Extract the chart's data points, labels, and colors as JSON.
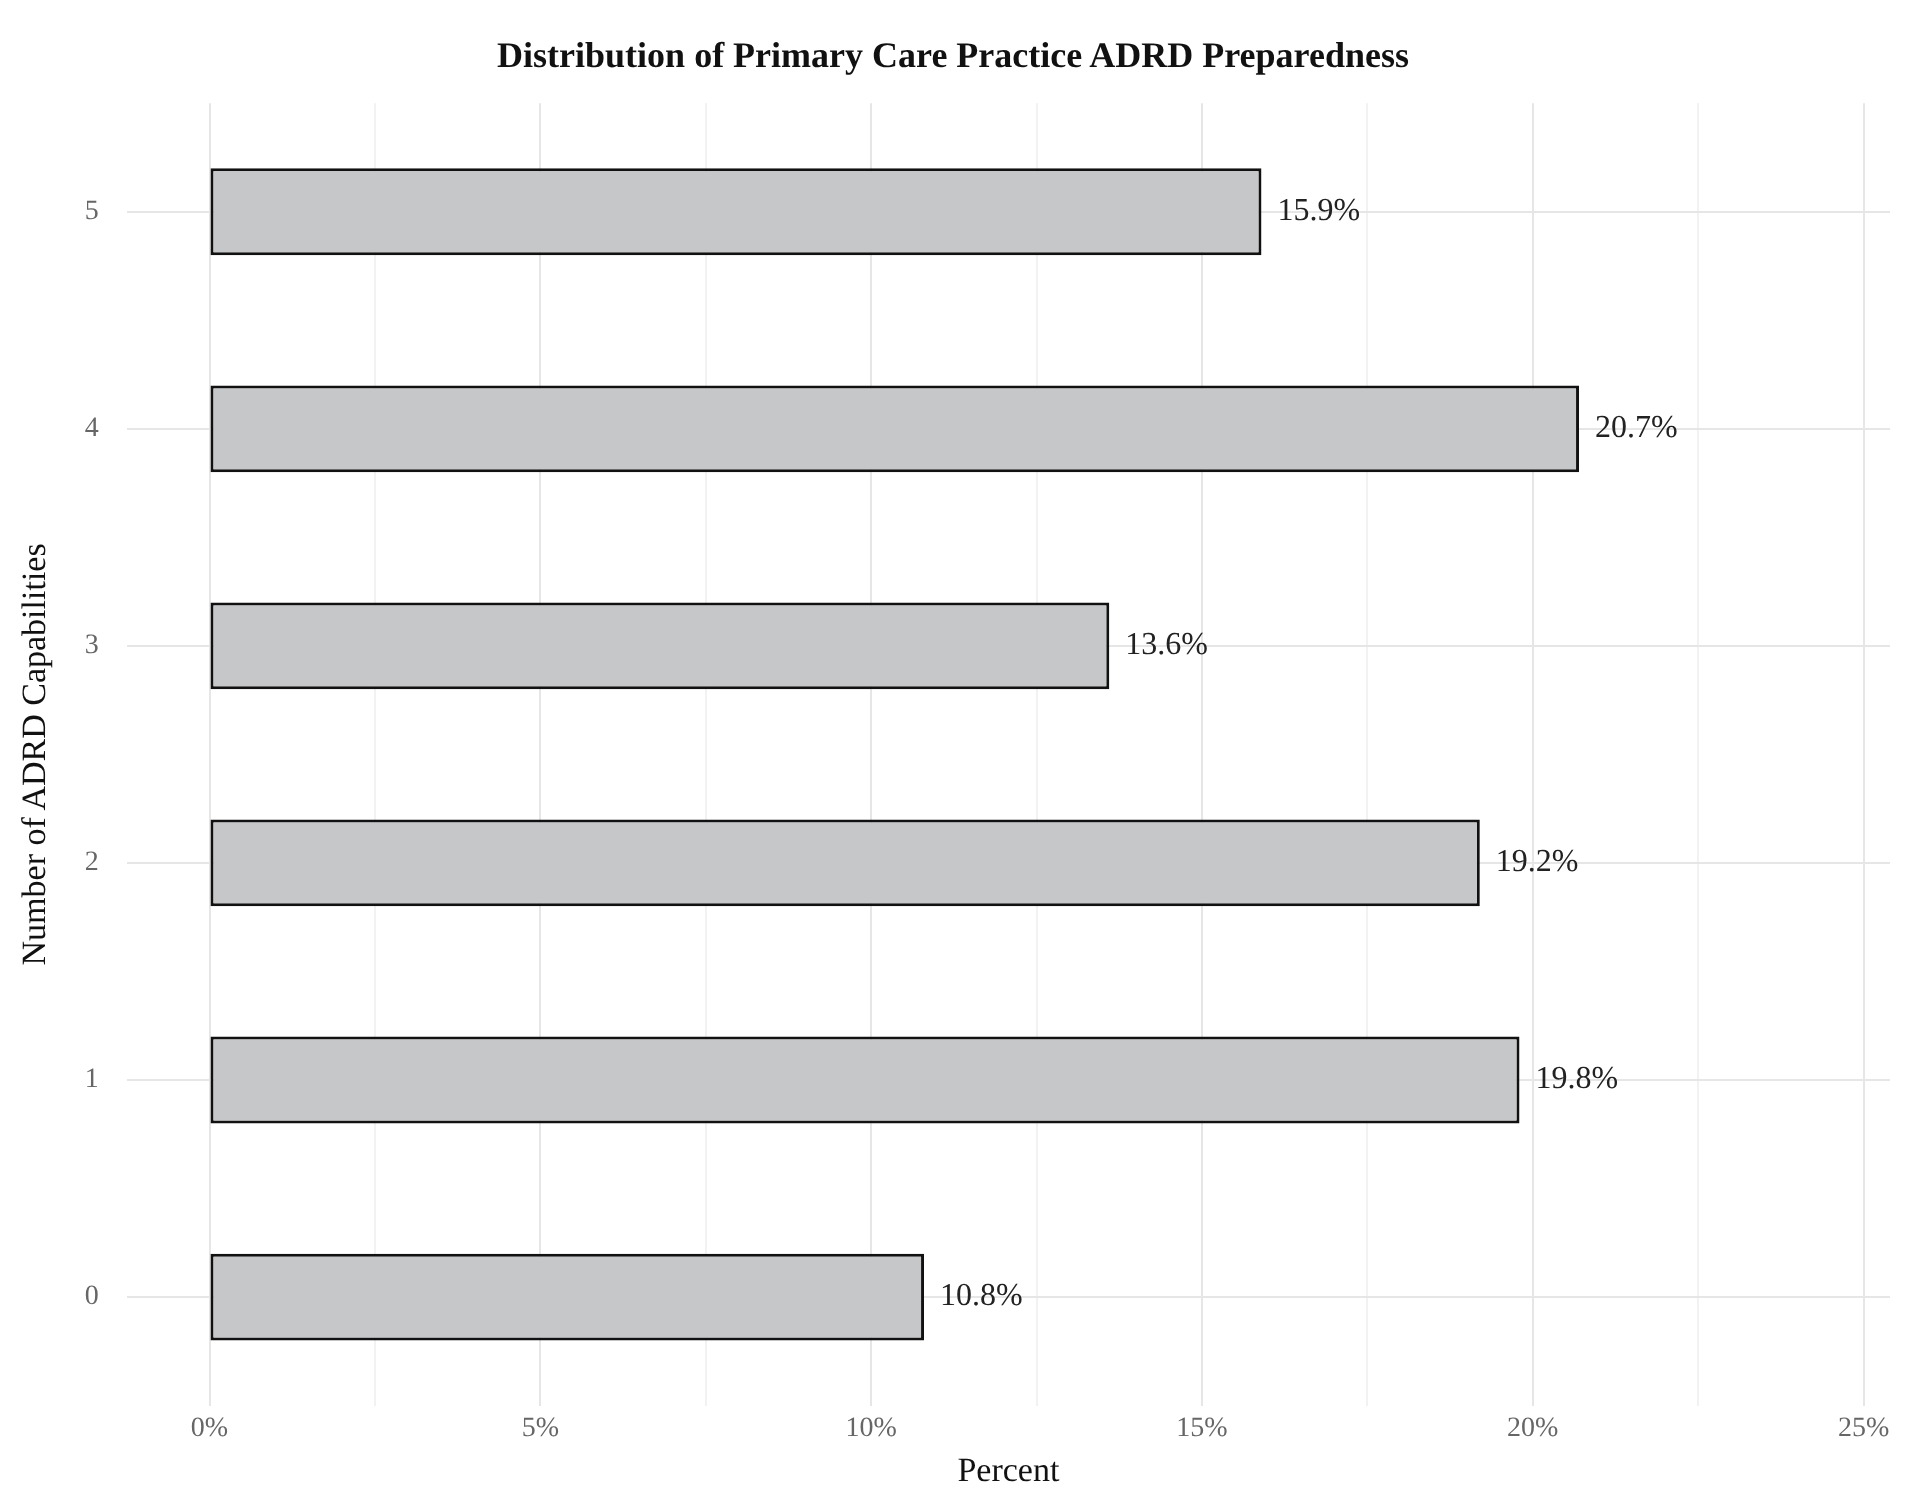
{
  "chart_data": {
    "type": "bar",
    "orientation": "horizontal",
    "title": "Distribution of Primary Care Practice ADRD Preparedness",
    "xlabel": "Percent",
    "ylabel": "Number of ADRD Capabilities",
    "categories": [
      "5",
      "4",
      "3",
      "2",
      "1",
      "0"
    ],
    "values": [
      15.9,
      20.7,
      13.6,
      19.2,
      19.8,
      10.8
    ],
    "value_labels": [
      "15.9%",
      "20.7%",
      "13.6%",
      "19.2%",
      "19.8%",
      "10.8%"
    ],
    "color": "#c6c7c9",
    "xlim": [
      -1.25,
      25.4
    ],
    "xticks": [
      {
        "value": 0,
        "label": "0%"
      },
      {
        "value": 2.5,
        "label": null
      },
      {
        "value": 5,
        "label": "5%"
      },
      {
        "value": 7.5,
        "label": null
      },
      {
        "value": 10,
        "label": "10%"
      },
      {
        "value": 12.5,
        "label": null
      },
      {
        "value": 15,
        "label": "15%"
      },
      {
        "value": 17.5,
        "label": null
      },
      {
        "value": 20,
        "label": "20%"
      },
      {
        "value": 22.5,
        "label": null
      },
      {
        "value": 25,
        "label": "25%"
      }
    ],
    "grid": true,
    "legend": false
  }
}
